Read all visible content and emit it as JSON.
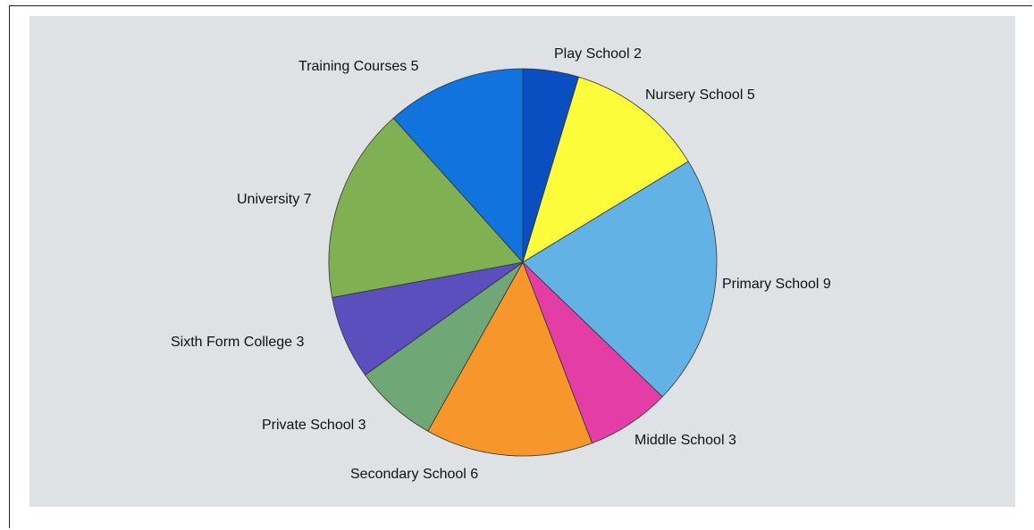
{
  "chart_data": {
    "type": "pie",
    "labels": [
      "Play School",
      "Nursery School",
      "Primary School",
      "Middle School",
      "Secondary School",
      "Private School",
      "Sixth Form College",
      "University",
      "Training Courses"
    ],
    "values": [
      2,
      5,
      9,
      3,
      6,
      3,
      3,
      7,
      5
    ],
    "colors": [
      "#0a4fc2",
      "#fcfc3a",
      "#62b2e6",
      "#e43ea6",
      "#f7962a",
      "#6fa777",
      "#5a4fbd",
      "#7fb052",
      "#1173dd"
    ],
    "start_angle": "12 o'clock",
    "direction": "clockwise",
    "title": "",
    "legend": "none",
    "background": "#dfe2e5"
  }
}
